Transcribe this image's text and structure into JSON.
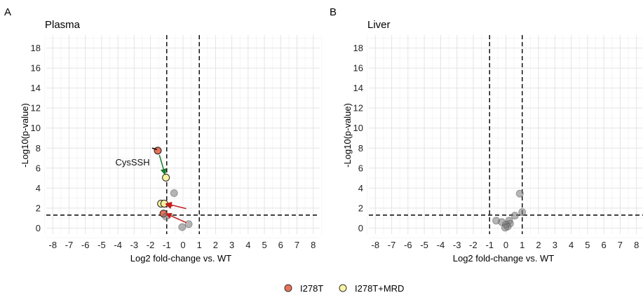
{
  "panels": [
    {
      "letter": "A",
      "title": "Plasma",
      "xlabel": "Log2 fold-change vs. WT",
      "ylabel": "-Log10(p-value)",
      "annotation": "CysSSH"
    },
    {
      "letter": "B",
      "title": "Liver",
      "xlabel": "Log2 fold-change vs. WT",
      "ylabel": "-Log10(p-value)"
    }
  ],
  "legend": {
    "items": [
      {
        "label": "I278T",
        "color": "#e8725a"
      },
      {
        "label": "I278T+MRD",
        "color": "#fbf3a0"
      }
    ]
  },
  "colors": {
    "neutral_point": "#7a7a7a",
    "arrow_green": "#1b7a2e",
    "arrow_red": "#c0201e",
    "grid_major": "#e4e4e4",
    "grid_minor": "#f2f2f2"
  },
  "chart_data": [
    {
      "type": "scatter",
      "title": "Plasma",
      "xlabel": "Log2 fold-change vs. WT",
      "ylabel": "-Log10(p-value)",
      "xlim": [
        -8,
        8
      ],
      "ylim": [
        0,
        18
      ],
      "xticks": [
        -8,
        -7,
        -6,
        -5,
        -4,
        -3,
        -2,
        -1,
        0,
        1,
        2,
        3,
        4,
        5,
        6,
        7,
        8
      ],
      "yticks": [
        0,
        2,
        4,
        6,
        8,
        10,
        12,
        14,
        16,
        18
      ],
      "thresholds": {
        "x": [
          -1,
          1
        ],
        "y": 1.3
      },
      "grid": true,
      "points": [
        {
          "x": -1.55,
          "y": 7.75,
          "group": "I278T"
        },
        {
          "x": -1.05,
          "y": 5.05,
          "group": "I278T+MRD"
        },
        {
          "x": -0.55,
          "y": 3.5,
          "group": "other"
        },
        {
          "x": -1.35,
          "y": 2.45,
          "group": "I278T+MRD"
        },
        {
          "x": -1.15,
          "y": 2.45,
          "group": "I278T+MRD"
        },
        {
          "x": -1.2,
          "y": 1.45,
          "group": "I278T"
        },
        {
          "x": -1.05,
          "y": 1.15,
          "group": "other"
        },
        {
          "x": 0.35,
          "y": 0.4,
          "group": "other"
        },
        {
          "x": -0.05,
          "y": 0.1,
          "group": "other"
        }
      ],
      "arrows": [
        {
          "from": [
            -1.45,
            7.3
          ],
          "to": [
            -1.1,
            5.35
          ],
          "color": "green"
        },
        {
          "from": [
            -1.9,
            8.0
          ],
          "to": [
            -1.6,
            7.85
          ],
          "color": "black"
        },
        {
          "from": [
            -0.65,
            2.2
          ],
          "to": [
            -1.05,
            2.35
          ],
          "color": "red"
        },
        {
          "from": [
            0.2,
            1.95
          ],
          "to": [
            -1.05,
            2.45
          ],
          "color": "red"
        },
        {
          "from": [
            0.2,
            0.55
          ],
          "to": [
            -1.05,
            1.45
          ],
          "color": "red"
        }
      ],
      "annotation": {
        "text": "CysSSH",
        "x": -3.1,
        "y": 6.6
      }
    },
    {
      "type": "scatter",
      "title": "Liver",
      "xlabel": "Log2 fold-change vs. WT",
      "ylabel": "-Log10(p-value)",
      "xlim": [
        -8,
        8
      ],
      "ylim": [
        0,
        18
      ],
      "xticks": [
        -8,
        -7,
        -6,
        -5,
        -4,
        -3,
        -2,
        -1,
        0,
        1,
        2,
        3,
        4,
        5,
        6,
        7,
        8
      ],
      "yticks": [
        0,
        2,
        4,
        6,
        8,
        10,
        12,
        14,
        16,
        18
      ],
      "thresholds": {
        "x": [
          -1,
          1
        ],
        "y": 1.3
      },
      "grid": true,
      "points": [
        {
          "x": 0.85,
          "y": 3.45,
          "group": "other"
        },
        {
          "x": 1.0,
          "y": 1.6,
          "group": "other"
        },
        {
          "x": 0.55,
          "y": 1.25,
          "group": "other"
        },
        {
          "x": -0.6,
          "y": 0.75,
          "group": "other"
        },
        {
          "x": -0.25,
          "y": 0.6,
          "group": "other"
        },
        {
          "x": 0.2,
          "y": 0.75,
          "group": "other"
        },
        {
          "x": 0.25,
          "y": 0.45,
          "group": "other"
        },
        {
          "x": 0.0,
          "y": 0.35,
          "group": "other"
        },
        {
          "x": 0.1,
          "y": 0.15,
          "group": "other"
        },
        {
          "x": -0.05,
          "y": 0.05,
          "group": "other"
        }
      ]
    }
  ]
}
